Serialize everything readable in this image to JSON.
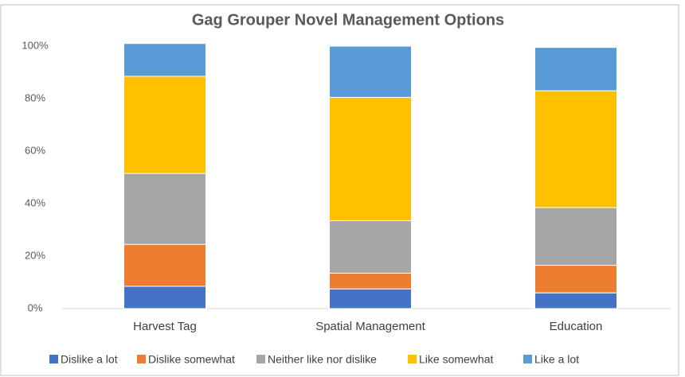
{
  "chart_data": {
    "type": "stacked_bar",
    "title": "Gag Grouper Novel Management Options",
    "categories": [
      "Harvest Tag",
      "Spatial Management",
      "Education"
    ],
    "series": [
      {
        "name": "Dislike a lot",
        "color": "#4472c4",
        "values": [
          8.5,
          7.5,
          6
        ]
      },
      {
        "name": "Dislike somewhat",
        "color": "#ed7d31",
        "values": [
          16,
          6,
          10.5
        ]
      },
      {
        "name": "Neither like nor dislike",
        "color": "#a5a5a5",
        "values": [
          27,
          20,
          22
        ]
      },
      {
        "name": "Like somewhat",
        "color": "#ffc000",
        "values": [
          37,
          47,
          44.5
        ]
      },
      {
        "name": "Like a lot",
        "color": "#5b9bd5",
        "values": [
          12.5,
          19.5,
          16.5
        ]
      }
    ],
    "ylim": [
      0,
      100
    ],
    "yticks": [
      {
        "value": 0,
        "label": "0%"
      },
      {
        "value": 20,
        "label": "20%"
      },
      {
        "value": 40,
        "label": "40%"
      },
      {
        "value": 60,
        "label": "60%"
      },
      {
        "value": 80,
        "label": "80%"
      },
      {
        "value": 100,
        "label": "100%"
      }
    ],
    "grid": false,
    "legend": "bottom"
  }
}
